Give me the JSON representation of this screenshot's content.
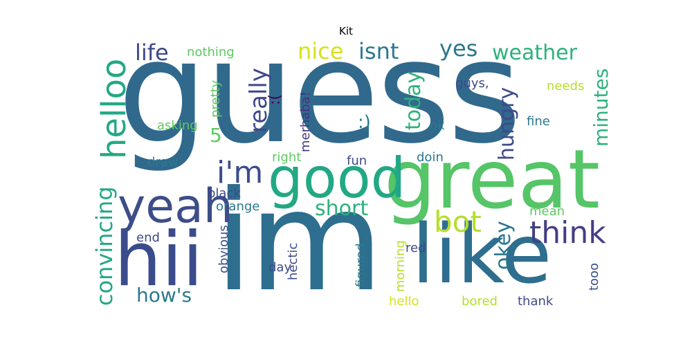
{
  "title": "Kit",
  "words": {
    "guess": "guess",
    "im": "im",
    "great": "great",
    "like": "like",
    "hii": "hii",
    "good": "good",
    "yeah": "yeah",
    "helloo": "helloo",
    "think": "think",
    "i_m": "i'm",
    "bot": "bot",
    "convincing": "convincing",
    "really": "really",
    "life": "life",
    "nice": "nice",
    "isnt": "isnt",
    "yes": "yes",
    "weather": "weather",
    "minutes": "minutes",
    "today": "today",
    "hungry": "hungry",
    "short": "short",
    "okey": "okey",
    "hows": "how's",
    "smile": ":)",
    "five": "5",
    "nothing": "nothing",
    "frown": ":(",
    "pretty": "pretty",
    "merhaba": "merhaba!",
    "guys": "guys,",
    "needs": "needs",
    "fine": "fine",
    "ok": "ok",
    "asking": "asking",
    "draw": "draw",
    "right": "right",
    "fun": "fun",
    "doin": "doin",
    "black": "black",
    "orange": "orange",
    "mean": "mean",
    "obvious": "obvious",
    "hectic": "hectic",
    "end": "end",
    "day": "day",
    "figured": "figured",
    "morning": "morning",
    "red": "red",
    "hello": "hello",
    "bored": "bored",
    "thank": "thank",
    "tooo": "tooo"
  }
}
